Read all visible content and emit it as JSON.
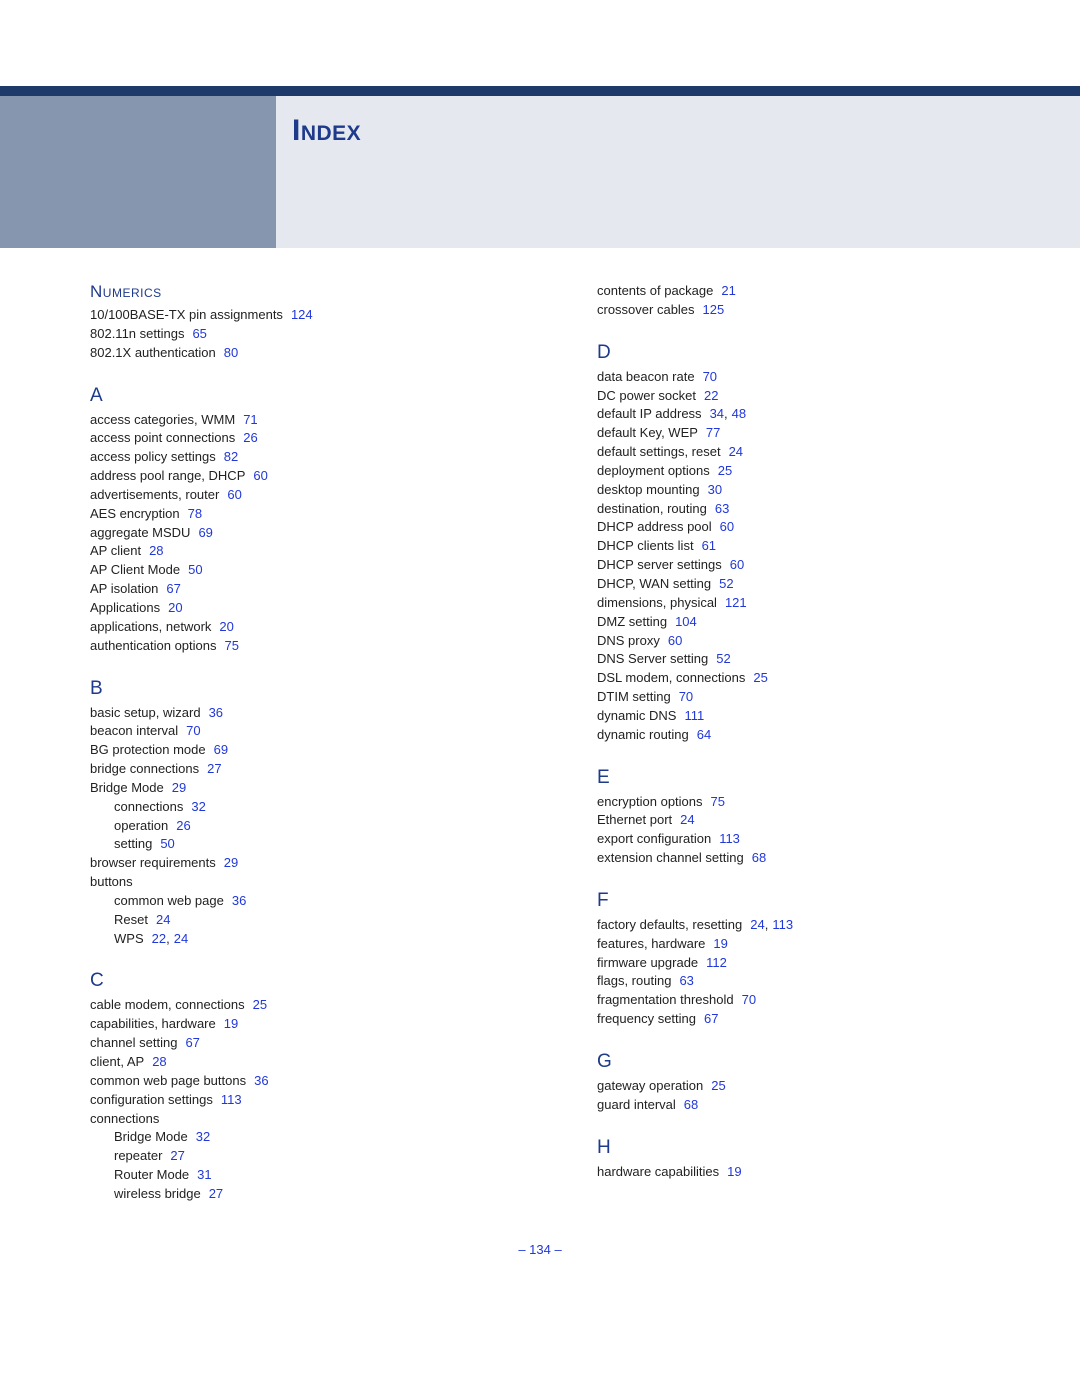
{
  "colors": {
    "header_bar": "#1e3a6b",
    "header_left": "#8796af",
    "header_right": "#e5e9ef",
    "title": "#1e3a8b",
    "section_letter": "#1e3a8b",
    "link": "#2138d8",
    "text": "#222222",
    "background": "#ffffff"
  },
  "title": "Index",
  "page_number": "– 134 –",
  "left_column": [
    {
      "letter": "Numerics",
      "smallcaps": true,
      "first": true,
      "entries": [
        {
          "text": "10/100BASE-TX pin assignments",
          "pages": [
            "124"
          ]
        },
        {
          "text": "802.11n settings",
          "pages": [
            "65"
          ]
        },
        {
          "text": "802.1X authentication",
          "pages": [
            "80"
          ]
        }
      ]
    },
    {
      "letter": "A",
      "entries": [
        {
          "text": "access categories, WMM",
          "pages": [
            "71"
          ]
        },
        {
          "text": "access point connections",
          "pages": [
            "26"
          ]
        },
        {
          "text": "access policy settings",
          "pages": [
            "82"
          ]
        },
        {
          "text": "address pool range, DHCP",
          "pages": [
            "60"
          ]
        },
        {
          "text": "advertisements, router",
          "pages": [
            "60"
          ]
        },
        {
          "text": "AES encryption",
          "pages": [
            "78"
          ]
        },
        {
          "text": "aggregate MSDU",
          "pages": [
            "69"
          ]
        },
        {
          "text": "AP client",
          "pages": [
            "28"
          ]
        },
        {
          "text": "AP Client Mode",
          "pages": [
            "50"
          ]
        },
        {
          "text": "AP isolation",
          "pages": [
            "67"
          ]
        },
        {
          "text": "Applications",
          "pages": [
            "20"
          ]
        },
        {
          "text": "applications, network",
          "pages": [
            "20"
          ]
        },
        {
          "text": "authentication options",
          "pages": [
            "75"
          ]
        }
      ]
    },
    {
      "letter": "B",
      "entries": [
        {
          "text": "basic setup, wizard",
          "pages": [
            "36"
          ]
        },
        {
          "text": "beacon interval",
          "pages": [
            "70"
          ]
        },
        {
          "text": "BG protection mode",
          "pages": [
            "69"
          ]
        },
        {
          "text": "bridge connections",
          "pages": [
            "27"
          ]
        },
        {
          "text": "Bridge Mode",
          "pages": [
            "29"
          ]
        },
        {
          "text": "connections",
          "pages": [
            "32"
          ],
          "sub": true
        },
        {
          "text": "operation",
          "pages": [
            "26"
          ],
          "sub": true
        },
        {
          "text": "setting",
          "pages": [
            "50"
          ],
          "sub": true
        },
        {
          "text": "browser requirements",
          "pages": [
            "29"
          ]
        },
        {
          "text": "buttons",
          "pages": []
        },
        {
          "text": "common web page",
          "pages": [
            "36"
          ],
          "sub": true
        },
        {
          "text": "Reset",
          "pages": [
            "24"
          ],
          "sub": true
        },
        {
          "text": "WPS",
          "pages": [
            "22",
            "24"
          ],
          "sub": true
        }
      ]
    },
    {
      "letter": "C",
      "entries": [
        {
          "text": "cable modem, connections",
          "pages": [
            "25"
          ]
        },
        {
          "text": "capabilities, hardware",
          "pages": [
            "19"
          ]
        },
        {
          "text": "channel setting",
          "pages": [
            "67"
          ]
        },
        {
          "text": "client, AP",
          "pages": [
            "28"
          ]
        },
        {
          "text": "common web page buttons",
          "pages": [
            "36"
          ]
        },
        {
          "text": "configuration settings",
          "pages": [
            "113"
          ]
        },
        {
          "text": "connections",
          "pages": []
        },
        {
          "text": "Bridge Mode",
          "pages": [
            "32"
          ],
          "sub": true
        },
        {
          "text": "repeater",
          "pages": [
            "27"
          ],
          "sub": true
        },
        {
          "text": "Router Mode",
          "pages": [
            "31"
          ],
          "sub": true
        },
        {
          "text": "wireless bridge",
          "pages": [
            "27"
          ],
          "sub": true
        }
      ]
    }
  ],
  "right_column": [
    {
      "letter": null,
      "first": true,
      "entries": [
        {
          "text": "contents of package",
          "pages": [
            "21"
          ]
        },
        {
          "text": "crossover cables",
          "pages": [
            "125"
          ]
        }
      ]
    },
    {
      "letter": "D",
      "entries": [
        {
          "text": "data beacon rate",
          "pages": [
            "70"
          ]
        },
        {
          "text": "DC power socket",
          "pages": [
            "22"
          ]
        },
        {
          "text": "default IP address",
          "pages": [
            "34",
            "48"
          ]
        },
        {
          "text": "default Key, WEP",
          "pages": [
            "77"
          ]
        },
        {
          "text": "default settings, reset",
          "pages": [
            "24"
          ]
        },
        {
          "text": "deployment options",
          "pages": [
            "25"
          ]
        },
        {
          "text": "desktop mounting",
          "pages": [
            "30"
          ]
        },
        {
          "text": "destination, routing",
          "pages": [
            "63"
          ]
        },
        {
          "text": "DHCP address pool",
          "pages": [
            "60"
          ]
        },
        {
          "text": "DHCP clients list",
          "pages": [
            "61"
          ]
        },
        {
          "text": "DHCP server settings",
          "pages": [
            "60"
          ]
        },
        {
          "text": "DHCP, WAN setting",
          "pages": [
            "52"
          ]
        },
        {
          "text": "dimensions, physical",
          "pages": [
            "121"
          ]
        },
        {
          "text": "DMZ setting",
          "pages": [
            "104"
          ]
        },
        {
          "text": "DNS proxy",
          "pages": [
            "60"
          ]
        },
        {
          "text": "DNS Server setting",
          "pages": [
            "52"
          ]
        },
        {
          "text": "DSL modem, connections",
          "pages": [
            "25"
          ]
        },
        {
          "text": "DTIM setting",
          "pages": [
            "70"
          ]
        },
        {
          "text": "dynamic DNS",
          "pages": [
            "111"
          ]
        },
        {
          "text": "dynamic routing",
          "pages": [
            "64"
          ]
        }
      ]
    },
    {
      "letter": "E",
      "entries": [
        {
          "text": "encryption options",
          "pages": [
            "75"
          ]
        },
        {
          "text": "Ethernet port",
          "pages": [
            "24"
          ]
        },
        {
          "text": "export configuration",
          "pages": [
            "113"
          ]
        },
        {
          "text": "extension channel setting",
          "pages": [
            "68"
          ]
        }
      ]
    },
    {
      "letter": "F",
      "entries": [
        {
          "text": "factory defaults, resetting",
          "pages": [
            "24",
            "113"
          ]
        },
        {
          "text": "features, hardware",
          "pages": [
            "19"
          ]
        },
        {
          "text": "firmware upgrade",
          "pages": [
            "112"
          ]
        },
        {
          "text": "flags, routing",
          "pages": [
            "63"
          ]
        },
        {
          "text": "fragmentation threshold",
          "pages": [
            "70"
          ]
        },
        {
          "text": "frequency setting",
          "pages": [
            "67"
          ]
        }
      ]
    },
    {
      "letter": "G",
      "entries": [
        {
          "text": "gateway operation",
          "pages": [
            "25"
          ]
        },
        {
          "text": "guard interval",
          "pages": [
            "68"
          ]
        }
      ]
    },
    {
      "letter": "H",
      "entries": [
        {
          "text": "hardware capabilities",
          "pages": [
            "19"
          ]
        }
      ]
    }
  ]
}
